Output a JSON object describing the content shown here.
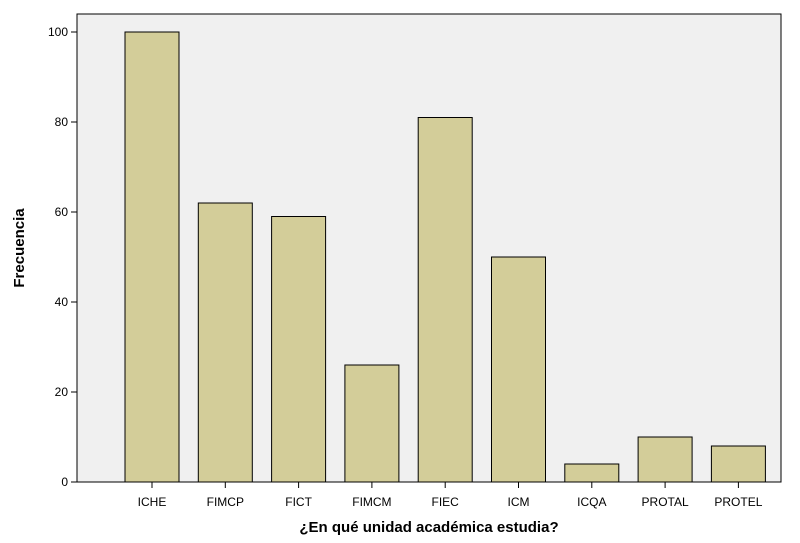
{
  "chart_data": {
    "type": "bar",
    "title": "",
    "xlabel": "¿En qué unidad académica estudia?",
    "ylabel": "Frecuencia",
    "categories": [
      "ICHE",
      "FIMCP",
      "FICT",
      "FIMCM",
      "FIEC",
      "ICM",
      "ICQA",
      "PROTAL",
      "PROTEL"
    ],
    "values": [
      100,
      62,
      59,
      26,
      81,
      50,
      4,
      10,
      8
    ],
    "ylim": [
      0,
      104
    ],
    "yticks": [
      0,
      20,
      40,
      60,
      80,
      100
    ],
    "grid": false,
    "colors": {
      "bar": "#d3cd99",
      "plot_background": "#f0f0f0",
      "border": "#000000"
    }
  }
}
